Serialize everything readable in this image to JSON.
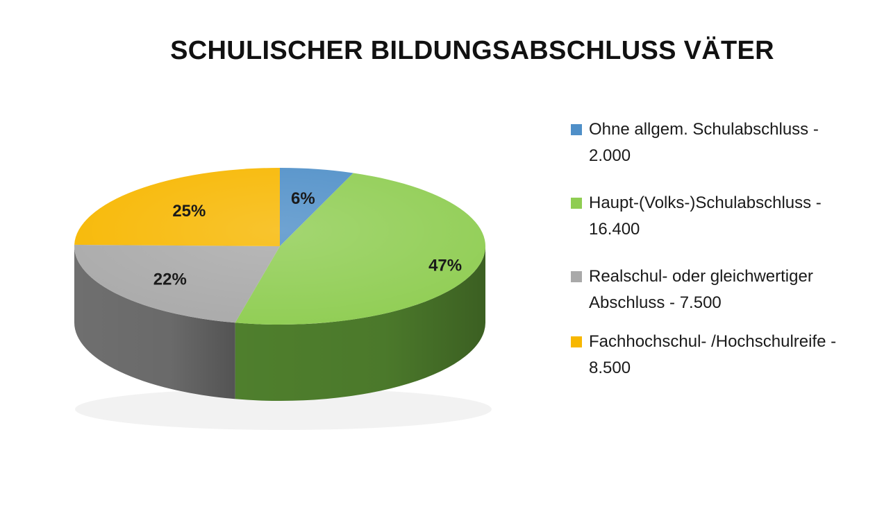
{
  "chart_data": {
    "type": "pie",
    "title": "SCHULISCHER BILDUNGSABSCHLUSS VÄTER",
    "categories": [
      "Ohne allgem. Schulabschluss - 2.000",
      "Haupt-(Volks-)Schulabschluss - 16.400",
      "Realschul- oder gleichwertiger Abschluss - 7.500",
      "Fachhochschul- /Hochschulreife - 8.500"
    ],
    "values": [
      2000,
      16400,
      7500,
      8500
    ],
    "percent_labels": [
      "6%",
      "47%",
      "22%",
      "25%"
    ],
    "colors": [
      "#4f8fc8",
      "#8fcd52",
      "#a9a9a9",
      "#f7b700"
    ],
    "side_colors": [
      "#2f6191",
      "#4f7f2d",
      "#6f6f6f",
      "#b78700"
    ],
    "legend_position": "right",
    "style": "3d"
  },
  "legend": {
    "items": [
      {
        "label": "Ohne allgem. Schulabschluss - 2.000"
      },
      {
        "label": "Haupt-(Volks-)Schulabschluss - 16.400"
      },
      {
        "label": "Realschul- oder gleichwertiger Abschluss - 7.500"
      },
      {
        "label": "Fachhochschul- /Hochschulreife - 8.500"
      }
    ]
  }
}
